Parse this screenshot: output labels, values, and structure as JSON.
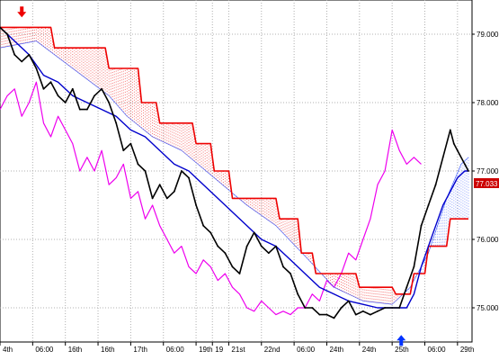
{
  "chart_data": {
    "type": "line",
    "ylim": [
      74.5,
      79.5
    ],
    "y_ticks": [
      "79.000",
      "78.000",
      "77.000",
      "76.000",
      "75.000"
    ],
    "y_tick_values": [
      79,
      78,
      77,
      76,
      75
    ],
    "x_tick_labels": [
      "4th",
      "06:00",
      "16th",
      "16th",
      "17th",
      "06:00",
      "19th",
      "19",
      "21st",
      "22nd",
      "06:00",
      "24th",
      "24th",
      "25th",
      "06:00",
      "29th"
    ],
    "x_tick_positions": [
      0,
      18,
      36,
      54,
      72,
      90,
      108,
      117,
      126,
      144,
      162,
      180,
      198,
      216,
      234,
      252
    ],
    "x_range": [
      0,
      260
    ],
    "current_price": "77.033",
    "grid": true,
    "colors": {
      "price": "#000000",
      "kijun": "#0000cc",
      "senkou_b": "#ee0000",
      "chikou": "#ee00ee",
      "cloud_bearish": "#ee0000",
      "cloud_bullish": "#3355ff",
      "sell_arrow": "#ee0000",
      "buy_arrow": "#0033ff",
      "current_price_bg": "#cc0000"
    },
    "markers": [
      {
        "type": "sell",
        "x": 12,
        "y": 79.3
      },
      {
        "type": "buy",
        "x": 221,
        "y": 74.55
      }
    ],
    "series": [
      {
        "role": "price",
        "points": [
          [
            0,
            79.1
          ],
          [
            4,
            79.0
          ],
          [
            8,
            78.7
          ],
          [
            12,
            78.6
          ],
          [
            16,
            78.7
          ],
          [
            20,
            78.5
          ],
          [
            24,
            78.2
          ],
          [
            28,
            78.3
          ],
          [
            32,
            78.1
          ],
          [
            36,
            78.0
          ],
          [
            40,
            78.2
          ],
          [
            44,
            77.9
          ],
          [
            48,
            77.9
          ],
          [
            52,
            78.1
          ],
          [
            56,
            78.2
          ],
          [
            60,
            78.0
          ],
          [
            64,
            77.7
          ],
          [
            68,
            77.3
          ],
          [
            72,
            77.4
          ],
          [
            76,
            77.1
          ],
          [
            80,
            77.0
          ],
          [
            84,
            76.6
          ],
          [
            88,
            76.8
          ],
          [
            92,
            76.6
          ],
          [
            96,
            76.7
          ],
          [
            100,
            77.0
          ],
          [
            104,
            76.9
          ],
          [
            108,
            76.5
          ],
          [
            112,
            76.2
          ],
          [
            116,
            76.1
          ],
          [
            120,
            75.9
          ],
          [
            124,
            75.8
          ],
          [
            128,
            75.6
          ],
          [
            132,
            75.5
          ],
          [
            136,
            75.9
          ],
          [
            140,
            76.1
          ],
          [
            144,
            75.9
          ],
          [
            148,
            75.8
          ],
          [
            152,
            75.9
          ],
          [
            156,
            75.6
          ],
          [
            160,
            75.5
          ],
          [
            164,
            75.2
          ],
          [
            168,
            75.0
          ],
          [
            172,
            75.0
          ],
          [
            176,
            74.9
          ],
          [
            180,
            74.9
          ],
          [
            184,
            74.85
          ],
          [
            188,
            75.0
          ],
          [
            192,
            75.1
          ],
          [
            196,
            74.9
          ],
          [
            200,
            74.95
          ],
          [
            204,
            74.9
          ],
          [
            208,
            74.95
          ],
          [
            212,
            75.0
          ],
          [
            216,
            75.0
          ],
          [
            220,
            75.0
          ],
          [
            224,
            75.3
          ],
          [
            228,
            75.6
          ],
          [
            232,
            76.2
          ],
          [
            236,
            76.5
          ],
          [
            240,
            76.8
          ],
          [
            244,
            77.2
          ],
          [
            248,
            77.6
          ],
          [
            250,
            77.4
          ],
          [
            252,
            77.3
          ],
          [
            256,
            77.1
          ],
          [
            258,
            77.0
          ]
        ]
      },
      {
        "role": "kijun",
        "points": [
          [
            0,
            79.1
          ],
          [
            8,
            78.9
          ],
          [
            16,
            78.7
          ],
          [
            24,
            78.4
          ],
          [
            32,
            78.3
          ],
          [
            40,
            78.1
          ],
          [
            48,
            78.0
          ],
          [
            56,
            77.9
          ],
          [
            64,
            77.8
          ],
          [
            72,
            77.6
          ],
          [
            80,
            77.5
          ],
          [
            88,
            77.3
          ],
          [
            96,
            77.1
          ],
          [
            104,
            77.0
          ],
          [
            112,
            76.8
          ],
          [
            120,
            76.6
          ],
          [
            128,
            76.4
          ],
          [
            136,
            76.2
          ],
          [
            144,
            76.0
          ],
          [
            152,
            75.9
          ],
          [
            160,
            75.7
          ],
          [
            168,
            75.5
          ],
          [
            176,
            75.3
          ],
          [
            184,
            75.2
          ],
          [
            192,
            75.1
          ],
          [
            200,
            75.05
          ],
          [
            208,
            75.0
          ],
          [
            216,
            75.0
          ],
          [
            224,
            75.0
          ],
          [
            228,
            75.2
          ],
          [
            232,
            75.6
          ],
          [
            236,
            75.9
          ],
          [
            240,
            76.2
          ],
          [
            244,
            76.5
          ],
          [
            248,
            76.7
          ],
          [
            252,
            76.9
          ],
          [
            256,
            77.0
          ],
          [
            258,
            77.0
          ]
        ]
      },
      {
        "role": "senkou_b",
        "points": [
          [
            0,
            79.1
          ],
          [
            28,
            79.1
          ],
          [
            30,
            78.8
          ],
          [
            58,
            78.8
          ],
          [
            60,
            78.5
          ],
          [
            76,
            78.5
          ],
          [
            78,
            78.0
          ],
          [
            86,
            78.0
          ],
          [
            88,
            77.7
          ],
          [
            106,
            77.7
          ],
          [
            108,
            77.4
          ],
          [
            116,
            77.4
          ],
          [
            118,
            77.0
          ],
          [
            126,
            77.0
          ],
          [
            128,
            76.6
          ],
          [
            152,
            76.6
          ],
          [
            154,
            76.3
          ],
          [
            164,
            76.3
          ],
          [
            166,
            75.8
          ],
          [
            172,
            75.8
          ],
          [
            174,
            75.5
          ],
          [
            196,
            75.5
          ],
          [
            198,
            75.3
          ],
          [
            216,
            75.3
          ],
          [
            218,
            75.2
          ],
          [
            226,
            75.2
          ],
          [
            228,
            75.5
          ],
          [
            234,
            75.5
          ],
          [
            236,
            75.9
          ],
          [
            246,
            75.9
          ],
          [
            248,
            76.3
          ],
          [
            258,
            76.3
          ]
        ]
      },
      {
        "role": "senkou_a",
        "points": [
          [
            0,
            78.8
          ],
          [
            20,
            78.9
          ],
          [
            40,
            78.5
          ],
          [
            60,
            78.1
          ],
          [
            70,
            77.8
          ],
          [
            84,
            77.5
          ],
          [
            100,
            77.3
          ],
          [
            118,
            76.9
          ],
          [
            136,
            76.5
          ],
          [
            152,
            76.2
          ],
          [
            170,
            75.7
          ],
          [
            184,
            75.3
          ],
          [
            200,
            75.1
          ],
          [
            216,
            75.05
          ],
          [
            226,
            75.3
          ],
          [
            236,
            75.8
          ],
          [
            246,
            76.6
          ],
          [
            254,
            77.1
          ],
          [
            258,
            77.2
          ]
        ]
      },
      {
        "role": "chikou",
        "points": [
          [
            0,
            77.9
          ],
          [
            4,
            78.1
          ],
          [
            8,
            78.2
          ],
          [
            12,
            77.8
          ],
          [
            16,
            78.0
          ],
          [
            20,
            78.3
          ],
          [
            24,
            77.7
          ],
          [
            28,
            77.5
          ],
          [
            32,
            77.8
          ],
          [
            36,
            77.6
          ],
          [
            40,
            77.4
          ],
          [
            44,
            77.0
          ],
          [
            48,
            77.2
          ],
          [
            52,
            77.0
          ],
          [
            56,
            77.3
          ],
          [
            60,
            76.8
          ],
          [
            64,
            76.9
          ],
          [
            68,
            77.1
          ],
          [
            72,
            76.6
          ],
          [
            76,
            76.7
          ],
          [
            80,
            76.3
          ],
          [
            84,
            76.5
          ],
          [
            88,
            76.2
          ],
          [
            92,
            76.0
          ],
          [
            96,
            75.8
          ],
          [
            100,
            75.9
          ],
          [
            104,
            75.6
          ],
          [
            108,
            75.5
          ],
          [
            112,
            75.7
          ],
          [
            116,
            75.6
          ],
          [
            120,
            75.4
          ],
          [
            124,
            75.5
          ],
          [
            128,
            75.3
          ],
          [
            132,
            75.2
          ],
          [
            136,
            75.0
          ],
          [
            140,
            74.95
          ],
          [
            144,
            75.1
          ],
          [
            148,
            75.0
          ],
          [
            152,
            74.9
          ],
          [
            156,
            74.95
          ],
          [
            160,
            74.9
          ],
          [
            164,
            75.0
          ],
          [
            168,
            75.0
          ],
          [
            172,
            75.2
          ],
          [
            176,
            75.1
          ],
          [
            180,
            75.4
          ],
          [
            184,
            75.3
          ],
          [
            188,
            75.5
          ],
          [
            192,
            75.8
          ],
          [
            196,
            75.7
          ],
          [
            200,
            76.0
          ],
          [
            204,
            76.3
          ],
          [
            208,
            76.8
          ],
          [
            212,
            77.0
          ],
          [
            216,
            77.6
          ],
          [
            220,
            77.3
          ],
          [
            224,
            77.1
          ],
          [
            228,
            77.2
          ],
          [
            232,
            77.1
          ]
        ]
      }
    ]
  }
}
